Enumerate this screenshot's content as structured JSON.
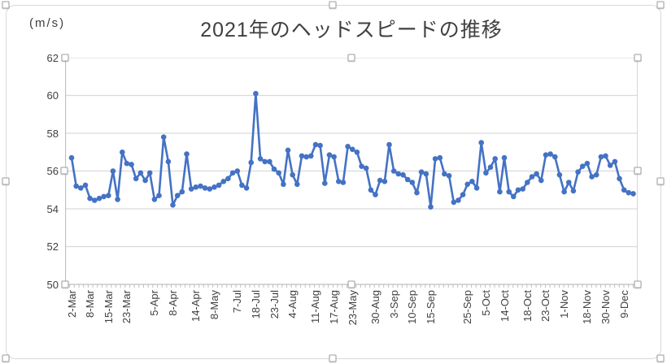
{
  "ui": {
    "title": "2021年のヘッドスピードの推移",
    "unit_label": "(m/s)",
    "colors": {
      "series": "#4472C4",
      "gridline": "#d9d9d9",
      "axis": "#bfbfbf",
      "text": "#404040",
      "frame_border": "#d9d9d9",
      "handle_border": "#9c9c9c"
    }
  },
  "chart_data": {
    "type": "line",
    "title": "2021年のヘッドスピードの推移",
    "ylabel": "(m/s)",
    "ylim": [
      50,
      62
    ],
    "y_ticks": [
      62,
      60,
      58,
      56,
      54,
      52,
      50
    ],
    "grid": "horizontal",
    "legend": "none",
    "marker": "circle",
    "x_tick_labels": [
      "2-Mar",
      "8-Mar",
      "15-Mar",
      "23-Mar",
      "5-Apr",
      "8-Apr",
      "14-Apr",
      "8-May",
      "7-Jul",
      "18-Jul",
      "23-Jul",
      "4-Aug",
      "11-Aug",
      "17-Aug",
      "23-May",
      "30-Aug",
      "3-Sep",
      "10-Sep",
      "15-Sep",
      "25-Sep",
      "5-Oct",
      "14-Oct",
      "18-Oct",
      "23-Oct",
      "1-Nov",
      "18-Nov",
      "30-Nov",
      "9-Dec"
    ],
    "x_tick_indices": [
      0,
      4,
      8,
      12,
      18,
      22,
      27,
      31,
      36,
      40,
      44,
      48,
      53,
      57,
      61,
      66,
      70,
      74,
      78,
      86,
      90,
      94,
      99,
      103,
      107,
      112,
      116,
      120
    ],
    "series": [
      {
        "values": [
          56.7,
          55.2,
          55.1,
          55.25,
          54.55,
          54.45,
          54.55,
          54.65,
          54.7,
          56.0,
          54.5,
          57.0,
          56.4,
          56.35,
          55.6,
          55.9,
          55.5,
          55.9,
          54.5,
          54.7,
          57.8,
          56.5,
          54.2,
          54.7,
          54.9,
          56.9,
          55.05,
          55.15,
          55.2,
          55.1,
          55.05,
          55.15,
          55.25,
          55.45,
          55.6,
          55.9,
          56.0,
          55.25,
          55.1,
          56.45,
          60.1,
          56.65,
          56.5,
          56.5,
          56.1,
          55.9,
          55.3,
          57.1,
          55.8,
          55.3,
          56.8,
          56.75,
          56.8,
          57.4,
          57.35,
          55.35,
          56.85,
          56.75,
          55.45,
          55.4,
          57.3,
          57.15,
          57.0,
          56.25,
          56.15,
          55.0,
          54.75,
          55.5,
          55.45,
          57.4,
          56.0,
          55.85,
          55.8,
          55.55,
          55.4,
          54.85,
          55.95,
          55.85,
          54.1,
          56.65,
          56.7,
          55.85,
          55.75,
          54.35,
          54.45,
          54.75,
          55.3,
          55.45,
          55.1,
          57.5,
          55.9,
          56.2,
          56.65,
          54.9,
          56.7,
          54.9,
          54.65,
          55.0,
          55.05,
          55.4,
          55.7,
          55.85,
          55.5,
          56.85,
          56.9,
          56.75,
          55.8,
          54.9,
          55.4,
          54.95,
          55.95,
          56.25,
          56.4,
          55.7,
          55.8,
          56.75,
          56.8,
          56.3,
          56.5,
          55.6,
          55.0,
          54.85,
          54.8
        ]
      }
    ]
  }
}
